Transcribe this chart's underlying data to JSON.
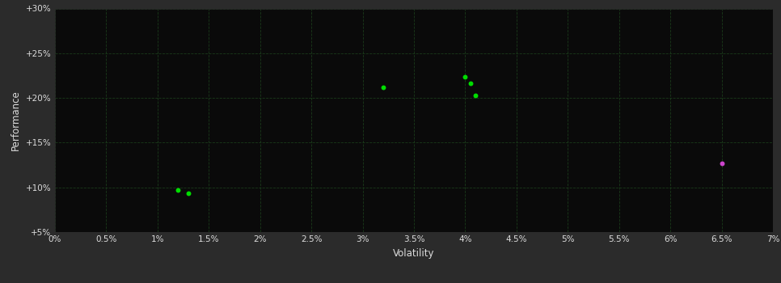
{
  "background_color": "#2b2b2b",
  "plot_bg_color": "#0a0a0a",
  "grid_color": "#1a3a1a",
  "text_color": "#dddddd",
  "xlabel": "Volatility",
  "ylabel": "Performance",
  "xlim": [
    0.0,
    0.07
  ],
  "ylim": [
    0.05,
    0.3
  ],
  "xtick_vals": [
    0.0,
    0.005,
    0.01,
    0.015,
    0.02,
    0.025,
    0.03,
    0.035,
    0.04,
    0.045,
    0.05,
    0.055,
    0.06,
    0.065,
    0.07
  ],
  "ytick_vals": [
    0.05,
    0.1,
    0.15,
    0.2,
    0.25,
    0.3
  ],
  "xtick_labels": [
    "0%",
    "0.5%",
    "1%",
    "1.5%",
    "2%",
    "2.5%",
    "3%",
    "3.5%",
    "4%",
    "4.5%",
    "5%",
    "5.5%",
    "6%",
    "6.5%",
    "7%"
  ],
  "ytick_labels": [
    "+5%",
    "+10%",
    "+15%",
    "+20%",
    "+25%",
    "+30%"
  ],
  "green_points": [
    [
      0.012,
      0.097
    ],
    [
      0.013,
      0.093
    ],
    [
      0.032,
      0.212
    ],
    [
      0.04,
      0.224
    ],
    [
      0.0405,
      0.216
    ],
    [
      0.041,
      0.203
    ]
  ],
  "magenta_points": [
    [
      0.065,
      0.127
    ]
  ],
  "green_color": "#00dd00",
  "magenta_color": "#cc44cc",
  "marker_size": 18
}
